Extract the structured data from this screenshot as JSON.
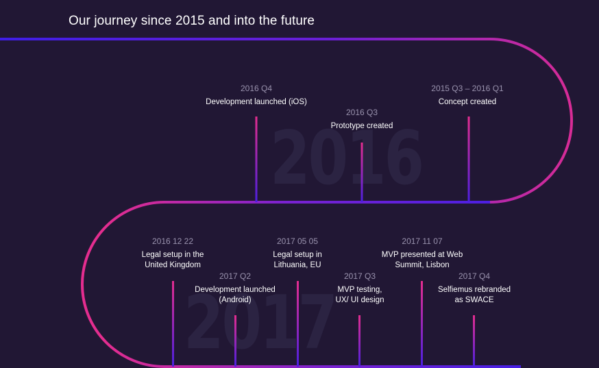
{
  "title": "Our journey since 2015 and into the future",
  "years": {
    "top": "2016",
    "bottom": "2017"
  },
  "milestones_2016": [
    {
      "date": "2016 Q4",
      "text": "Development launched (iOS)"
    },
    {
      "date": "2016 Q3",
      "text": "Prototype created"
    },
    {
      "date": "2015 Q3 – 2016 Q1",
      "text": "Concept created"
    }
  ],
  "milestones_2017": [
    {
      "date": "2016 12 22",
      "text": "Legal setup in the\nUnited Kingdom"
    },
    {
      "date": "2017 Q2",
      "text": "Development launched\n(Android)"
    },
    {
      "date": "2017 05 05",
      "text": "Legal setup in\nLithuania, EU"
    },
    {
      "date": "2017 Q3",
      "text": "MVP testing,\nUX/ UI design"
    },
    {
      "date": "2017 11 07",
      "text": "MVP presented at Web\nSummit, Lisbon"
    },
    {
      "date": "2017 Q4",
      "text": "Selfiemus rebranded\nas SWACE"
    }
  ],
  "colors": {
    "background": "#211734",
    "pink": "#e42d8f",
    "violet": "#3f1ee6",
    "year_watermark": "#2b2342"
  }
}
